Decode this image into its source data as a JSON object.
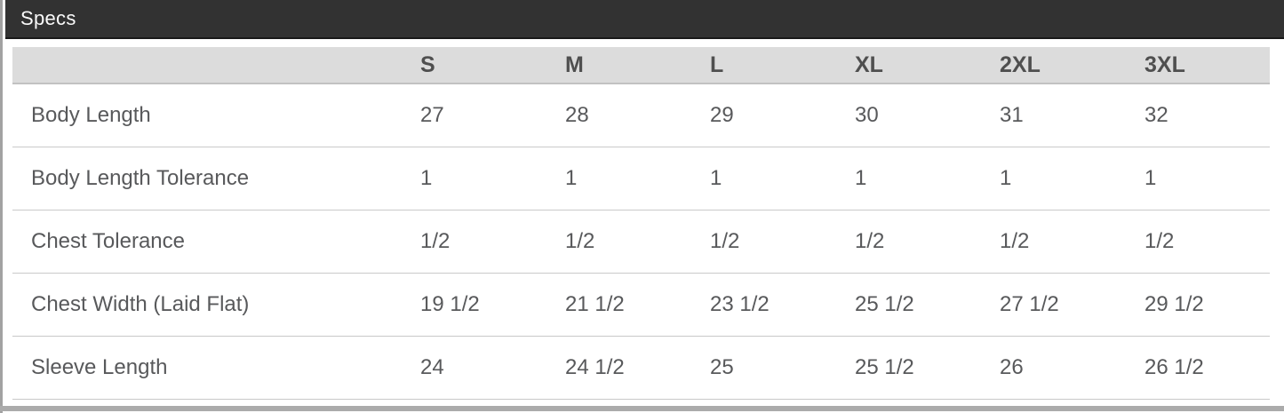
{
  "panel": {
    "title": "Specs"
  },
  "table": {
    "size_columns": [
      "S",
      "M",
      "L",
      "XL",
      "2XL",
      "3XL"
    ],
    "rows": [
      {
        "label": "Body Length",
        "values": [
          "27",
          "28",
          "29",
          "30",
          "31",
          "32"
        ]
      },
      {
        "label": "Body Length Tolerance",
        "values": [
          "1",
          "1",
          "1",
          "1",
          "1",
          "1"
        ]
      },
      {
        "label": "Chest Tolerance",
        "values": [
          "1/2",
          "1/2",
          "1/2",
          "1/2",
          "1/2",
          "1/2"
        ]
      },
      {
        "label": "Chest Width (Laid Flat)",
        "values": [
          "19 1/2",
          "21 1/2",
          "23 1/2",
          "25 1/2",
          "27 1/2",
          "29 1/2"
        ]
      },
      {
        "label": "Sleeve Length",
        "values": [
          "24",
          "24 1/2",
          "25",
          "25 1/2",
          "26",
          "26 1/2"
        ]
      }
    ]
  },
  "colors": {
    "panel_header_bg": "#323232",
    "panel_header_text": "#fafafa",
    "table_header_bg": "#dcdcdc",
    "table_header_text": "#4f4f4f",
    "cell_text": "#58595b",
    "row_divider": "#c9c9c9",
    "edge_strip": "#a2a2a2",
    "bottom_bar": "#ababab"
  }
}
